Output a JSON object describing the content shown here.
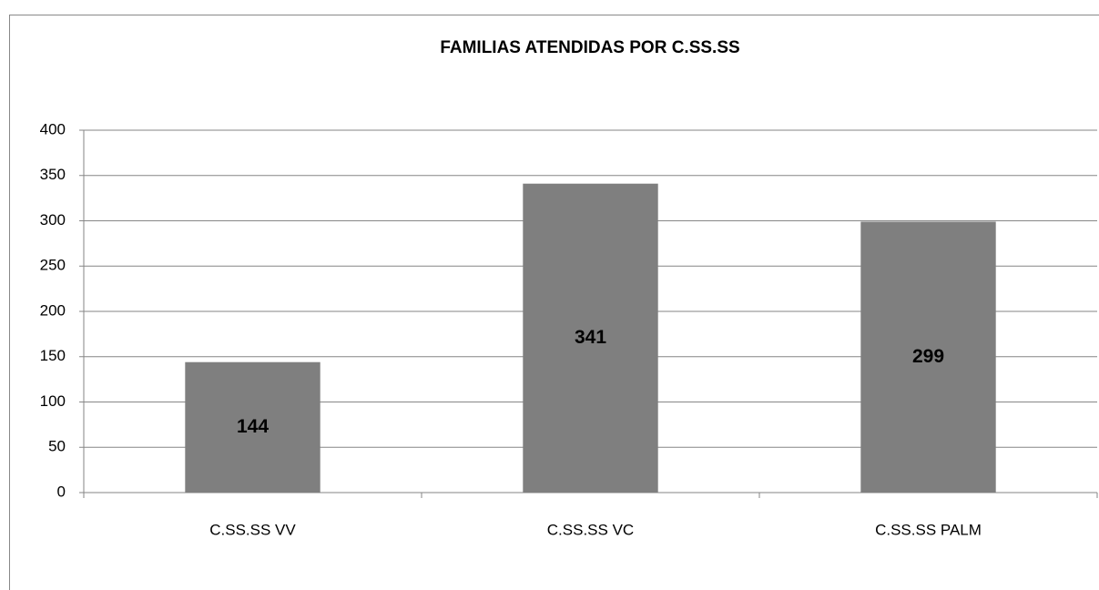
{
  "chart_data": {
    "type": "bar",
    "title": "FAMILIAS ATENDIDAS POR C.SS.SS",
    "categories": [
      "C.SS.SS VV",
      "C.SS.SS VC",
      "C.SS.SS PALM"
    ],
    "values": [
      144,
      341,
      299
    ],
    "color": "#7f7f7f",
    "ylim": [
      0,
      400
    ],
    "yticks": [
      0,
      50,
      100,
      150,
      200,
      250,
      300,
      350,
      400
    ],
    "grid": true
  }
}
